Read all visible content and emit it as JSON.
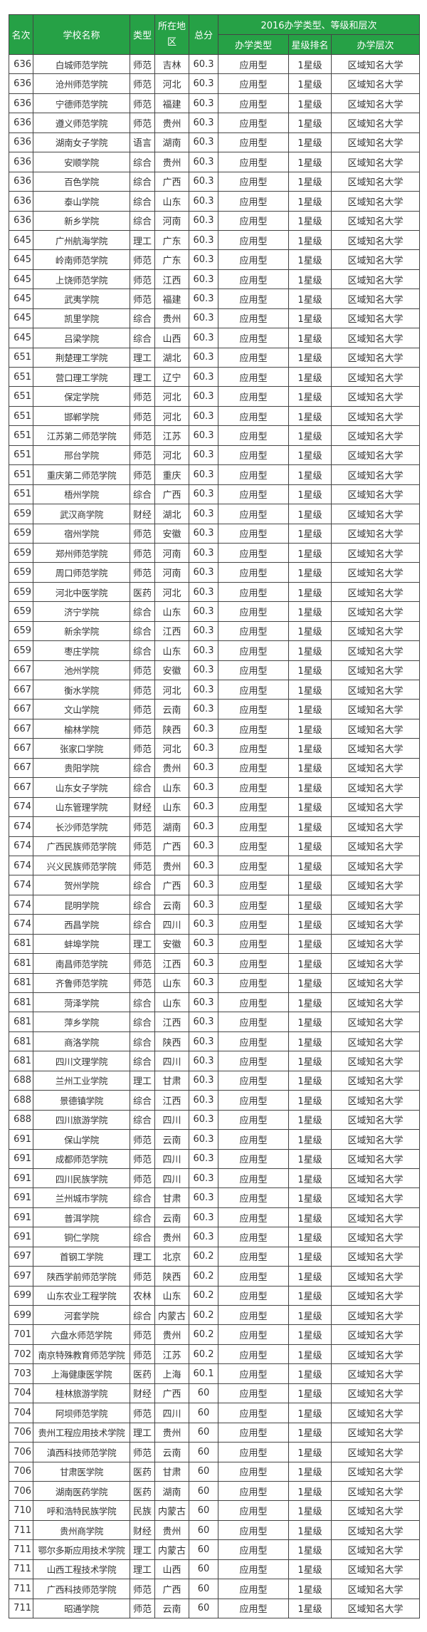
{
  "header": {
    "rank": "名次",
    "name": "学校名称",
    "type": "类型",
    "region": "所在地区",
    "score": "总分",
    "group": "2016办学类型、等级和层次",
    "sub_type": "办学类型",
    "sub_star": "星级排名",
    "sub_level": "办学层次"
  },
  "colors": {
    "header_bg": "#26a146",
    "header_text": "#ffffff",
    "border": "#444444"
  },
  "rows": [
    [
      "636",
      "白城师范学院",
      "师范",
      "吉林",
      "60.3",
      "应用型",
      "1星级",
      "区域知名大学"
    ],
    [
      "636",
      "沧州师范学院",
      "师范",
      "河北",
      "60.3",
      "应用型",
      "1星级",
      "区域知名大学"
    ],
    [
      "636",
      "宁德师范学院",
      "师范",
      "福建",
      "60.3",
      "应用型",
      "1星级",
      "区域知名大学"
    ],
    [
      "636",
      "遵义师范学院",
      "师范",
      "贵州",
      "60.3",
      "应用型",
      "1星级",
      "区域知名大学"
    ],
    [
      "636",
      "湖南女子学院",
      "语言",
      "湖南",
      "60.3",
      "应用型",
      "1星级",
      "区域知名大学"
    ],
    [
      "636",
      "安顺学院",
      "综合",
      "贵州",
      "60.3",
      "应用型",
      "1星级",
      "区域知名大学"
    ],
    [
      "636",
      "百色学院",
      "综合",
      "广西",
      "60.3",
      "应用型",
      "1星级",
      "区域知名大学"
    ],
    [
      "636",
      "泰山学院",
      "综合",
      "山东",
      "60.3",
      "应用型",
      "1星级",
      "区域知名大学"
    ],
    [
      "636",
      "新乡学院",
      "综合",
      "河南",
      "60.3",
      "应用型",
      "1星级",
      "区域知名大学"
    ],
    [
      "645",
      "广州航海学院",
      "理工",
      "广东",
      "60.3",
      "应用型",
      "1星级",
      "区域知名大学"
    ],
    [
      "645",
      "岭南师范学院",
      "师范",
      "广东",
      "60.3",
      "应用型",
      "1星级",
      "区域知名大学"
    ],
    [
      "645",
      "上饶师范学院",
      "师范",
      "江西",
      "60.3",
      "应用型",
      "1星级",
      "区域知名大学"
    ],
    [
      "645",
      "武夷学院",
      "师范",
      "福建",
      "60.3",
      "应用型",
      "1星级",
      "区域知名大学"
    ],
    [
      "645",
      "凯里学院",
      "综合",
      "贵州",
      "60.3",
      "应用型",
      "1星级",
      "区域知名大学"
    ],
    [
      "645",
      "吕梁学院",
      "综合",
      "山西",
      "60.3",
      "应用型",
      "1星级",
      "区域知名大学"
    ],
    [
      "651",
      "荆楚理工学院",
      "理工",
      "湖北",
      "60.3",
      "应用型",
      "1星级",
      "区域知名大学"
    ],
    [
      "651",
      "营口理工学院",
      "理工",
      "辽宁",
      "60.3",
      "应用型",
      "1星级",
      "区域知名大学"
    ],
    [
      "651",
      "保定学院",
      "师范",
      "河北",
      "60.3",
      "应用型",
      "1星级",
      "区域知名大学"
    ],
    [
      "651",
      "邯郸学院",
      "师范",
      "河北",
      "60.3",
      "应用型",
      "1星级",
      "区域知名大学"
    ],
    [
      "651",
      "江苏第二师范学院",
      "师范",
      "江苏",
      "60.3",
      "应用型",
      "1星级",
      "区域知名大学"
    ],
    [
      "651",
      "邢台学院",
      "师范",
      "河北",
      "60.3",
      "应用型",
      "1星级",
      "区域知名大学"
    ],
    [
      "651",
      "重庆第二师范学院",
      "师范",
      "重庆",
      "60.3",
      "应用型",
      "1星级",
      "区域知名大学"
    ],
    [
      "651",
      "梧州学院",
      "综合",
      "广西",
      "60.3",
      "应用型",
      "1星级",
      "区域知名大学"
    ],
    [
      "659",
      "武汉商学院",
      "财经",
      "湖北",
      "60.3",
      "应用型",
      "1星级",
      "区域知名大学"
    ],
    [
      "659",
      "宿州学院",
      "师范",
      "安徽",
      "60.3",
      "应用型",
      "1星级",
      "区域知名大学"
    ],
    [
      "659",
      "郑州师范学院",
      "师范",
      "河南",
      "60.3",
      "应用型",
      "1星级",
      "区域知名大学"
    ],
    [
      "659",
      "周口师范学院",
      "师范",
      "河南",
      "60.3",
      "应用型",
      "1星级",
      "区域知名大学"
    ],
    [
      "659",
      "河北中医学院",
      "医药",
      "河北",
      "60.3",
      "应用型",
      "1星级",
      "区域知名大学"
    ],
    [
      "659",
      "济宁学院",
      "综合",
      "山东",
      "60.3",
      "应用型",
      "1星级",
      "区域知名大学"
    ],
    [
      "659",
      "新余学院",
      "综合",
      "江西",
      "60.3",
      "应用型",
      "1星级",
      "区域知名大学"
    ],
    [
      "659",
      "枣庄学院",
      "综合",
      "山东",
      "60.3",
      "应用型",
      "1星级",
      "区域知名大学"
    ],
    [
      "667",
      "池州学院",
      "师范",
      "安徽",
      "60.3",
      "应用型",
      "1星级",
      "区域知名大学"
    ],
    [
      "667",
      "衡水学院",
      "师范",
      "河北",
      "60.3",
      "应用型",
      "1星级",
      "区域知名大学"
    ],
    [
      "667",
      "文山学院",
      "师范",
      "云南",
      "60.3",
      "应用型",
      "1星级",
      "区域知名大学"
    ],
    [
      "667",
      "榆林学院",
      "师范",
      "陕西",
      "60.3",
      "应用型",
      "1星级",
      "区域知名大学"
    ],
    [
      "667",
      "张家口学院",
      "师范",
      "河北",
      "60.3",
      "应用型",
      "1星级",
      "区域知名大学"
    ],
    [
      "667",
      "贵阳学院",
      "综合",
      "贵州",
      "60.3",
      "应用型",
      "1星级",
      "区域知名大学"
    ],
    [
      "667",
      "山东女子学院",
      "综合",
      "山东",
      "60.3",
      "应用型",
      "1星级",
      "区域知名大学"
    ],
    [
      "674",
      "山东管理学院",
      "财经",
      "山东",
      "60.3",
      "应用型",
      "1星级",
      "区域知名大学"
    ],
    [
      "674",
      "长沙师范学院",
      "师范",
      "湖南",
      "60.3",
      "应用型",
      "1星级",
      "区域知名大学"
    ],
    [
      "674",
      "广西民族师范学院",
      "师范",
      "广西",
      "60.3",
      "应用型",
      "1星级",
      "区域知名大学"
    ],
    [
      "674",
      "兴义民族师范学院",
      "师范",
      "贵州",
      "60.3",
      "应用型",
      "1星级",
      "区域知名大学"
    ],
    [
      "674",
      "贺州学院",
      "综合",
      "广西",
      "60.3",
      "应用型",
      "1星级",
      "区域知名大学"
    ],
    [
      "674",
      "昆明学院",
      "综合",
      "云南",
      "60.3",
      "应用型",
      "1星级",
      "区域知名大学"
    ],
    [
      "674",
      "西昌学院",
      "综合",
      "四川",
      "60.3",
      "应用型",
      "1星级",
      "区域知名大学"
    ],
    [
      "681",
      "蚌埠学院",
      "理工",
      "安徽",
      "60.3",
      "应用型",
      "1星级",
      "区域知名大学"
    ],
    [
      "681",
      "南昌师范学院",
      "师范",
      "江西",
      "60.3",
      "应用型",
      "1星级",
      "区域知名大学"
    ],
    [
      "681",
      "齐鲁师范学院",
      "师范",
      "山东",
      "60.3",
      "应用型",
      "1星级",
      "区域知名大学"
    ],
    [
      "681",
      "菏泽学院",
      "综合",
      "山东",
      "60.3",
      "应用型",
      "1星级",
      "区域知名大学"
    ],
    [
      "681",
      "萍乡学院",
      "综合",
      "江西",
      "60.3",
      "应用型",
      "1星级",
      "区域知名大学"
    ],
    [
      "681",
      "商洛学院",
      "综合",
      "陕西",
      "60.3",
      "应用型",
      "1星级",
      "区域知名大学"
    ],
    [
      "681",
      "四川文理学院",
      "综合",
      "四川",
      "60.3",
      "应用型",
      "1星级",
      "区域知名大学"
    ],
    [
      "688",
      "兰州工业学院",
      "理工",
      "甘肃",
      "60.3",
      "应用型",
      "1星级",
      "区域知名大学"
    ],
    [
      "688",
      "景德镇学院",
      "综合",
      "江西",
      "60.3",
      "应用型",
      "1星级",
      "区域知名大学"
    ],
    [
      "688",
      "四川旅游学院",
      "综合",
      "四川",
      "60.3",
      "应用型",
      "1星级",
      "区域知名大学"
    ],
    [
      "691",
      "保山学院",
      "师范",
      "云南",
      "60.3",
      "应用型",
      "1星级",
      "区域知名大学"
    ],
    [
      "691",
      "成都师范学院",
      "师范",
      "四川",
      "60.3",
      "应用型",
      "1星级",
      "区域知名大学"
    ],
    [
      "691",
      "四川民族学院",
      "师范",
      "四川",
      "60.3",
      "应用型",
      "1星级",
      "区域知名大学"
    ],
    [
      "691",
      "兰州城市学院",
      "综合",
      "甘肃",
      "60.3",
      "应用型",
      "1星级",
      "区域知名大学"
    ],
    [
      "691",
      "普洱学院",
      "综合",
      "云南",
      "60.3",
      "应用型",
      "1星级",
      "区域知名大学"
    ],
    [
      "691",
      "铜仁学院",
      "综合",
      "贵州",
      "60.3",
      "应用型",
      "1星级",
      "区域知名大学"
    ],
    [
      "697",
      "首钢工学院",
      "理工",
      "北京",
      "60.2",
      "应用型",
      "1星级",
      "区域知名大学"
    ],
    [
      "697",
      "陕西学前师范学院",
      "师范",
      "陕西",
      "60.2",
      "应用型",
      "1星级",
      "区域知名大学"
    ],
    [
      "699",
      "山东农业工程学院",
      "农林",
      "山东",
      "60.2",
      "应用型",
      "1星级",
      "区域知名大学"
    ],
    [
      "699",
      "河套学院",
      "综合",
      "内蒙古",
      "60.2",
      "应用型",
      "1星级",
      "区域知名大学"
    ],
    [
      "701",
      "六盘水师范学院",
      "师范",
      "贵州",
      "60.2",
      "应用型",
      "1星级",
      "区域知名大学"
    ],
    [
      "702",
      "南京特殊教育师范学院",
      "师范",
      "江苏",
      "60.2",
      "应用型",
      "1星级",
      "区域知名大学"
    ],
    [
      "703",
      "上海健康医学院",
      "医药",
      "上海",
      "60.1",
      "应用型",
      "1星级",
      "区域知名大学"
    ],
    [
      "704",
      "桂林旅游学院",
      "财经",
      "广西",
      "60",
      "应用型",
      "1星级",
      "区域知名大学"
    ],
    [
      "704",
      "阿坝师范学院",
      "师范",
      "四川",
      "60",
      "应用型",
      "1星级",
      "区域知名大学"
    ],
    [
      "706",
      "贵州工程应用技术学院",
      "理工",
      "贵州",
      "60",
      "应用型",
      "1星级",
      "区域知名大学"
    ],
    [
      "706",
      "滇西科技师范学院",
      "师范",
      "云南",
      "60",
      "应用型",
      "1星级",
      "区域知名大学"
    ],
    [
      "706",
      "甘肃医学院",
      "医药",
      "甘肃",
      "60",
      "应用型",
      "1星级",
      "区域知名大学"
    ],
    [
      "706",
      "湖南医药学院",
      "医药",
      "湖南",
      "60",
      "应用型",
      "1星级",
      "区域知名大学"
    ],
    [
      "710",
      "呼和浩特民族学院",
      "民族",
      "内蒙古",
      "60",
      "应用型",
      "1星级",
      "区域知名大学"
    ],
    [
      "711",
      "贵州商学院",
      "财经",
      "贵州",
      "60",
      "应用型",
      "1星级",
      "区域知名大学"
    ],
    [
      "711",
      "鄂尔多斯应用技术学院",
      "理工",
      "内蒙古",
      "60",
      "应用型",
      "1星级",
      "区域知名大学"
    ],
    [
      "711",
      "山西工程技术学院",
      "理工",
      "山西",
      "60",
      "应用型",
      "1星级",
      "区域知名大学"
    ],
    [
      "711",
      "广西科技师范学院",
      "师范",
      "广西",
      "60",
      "应用型",
      "1星级",
      "区域知名大学"
    ],
    [
      "711",
      "昭通学院",
      "师范",
      "云南",
      "60",
      "应用型",
      "1星级",
      "区域知名大学"
    ]
  ]
}
